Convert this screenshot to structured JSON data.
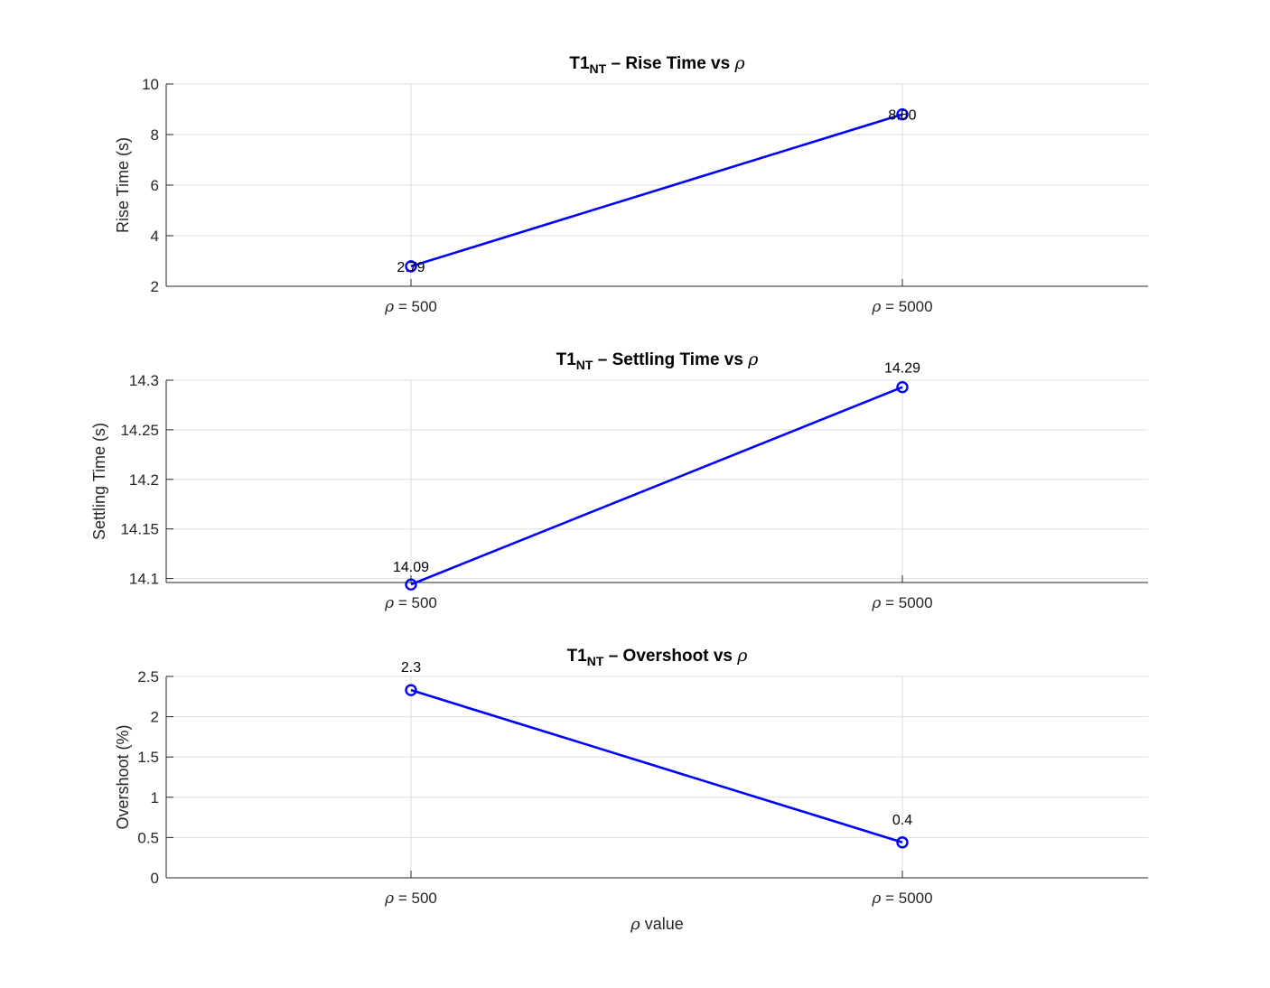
{
  "chart_data": [
    {
      "type": "line",
      "title": {
        "main": "T1",
        "sub": "NT",
        "rest": " – Rise Time vs ",
        "symbol": "ρ"
      },
      "categories": [
        "ρ = 500",
        "ρ = 5000"
      ],
      "values": [
        2.79,
        8.8
      ],
      "data_labels": [
        "2.79",
        "8.80"
      ],
      "ylabel": "Rise Time (s)",
      "xlabel": "",
      "ylim": [
        2,
        10
      ],
      "yticks": [
        "2",
        "4",
        "6",
        "8",
        "10"
      ],
      "ytick_values": [
        2,
        4,
        6,
        8,
        10
      ],
      "grid": true,
      "color": "#0000ff"
    },
    {
      "type": "line",
      "title": {
        "main": "T1",
        "sub": "NT",
        "rest": " – Settling Time vs ",
        "symbol": "ρ"
      },
      "categories": [
        "ρ = 500",
        "ρ = 5000"
      ],
      "values": [
        14.094,
        14.293
      ],
      "data_labels": [
        "14.09",
        "14.29"
      ],
      "ylabel": "Settling Time (s)",
      "xlabel": "",
      "ylim": [
        14.096,
        14.3
      ],
      "yticks": [
        "14.1",
        "14.15",
        "14.2",
        "14.25",
        "14.3"
      ],
      "ytick_values": [
        14.1,
        14.15,
        14.2,
        14.25,
        14.3
      ],
      "grid": true,
      "color": "#0000ff"
    },
    {
      "type": "line",
      "title": {
        "main": "T1",
        "sub": "NT",
        "rest": " – Overshoot vs ",
        "symbol": "ρ"
      },
      "categories": [
        "ρ = 500",
        "ρ = 5000"
      ],
      "values": [
        2.33,
        0.44
      ],
      "data_labels": [
        "2.3",
        "0.4"
      ],
      "ylabel": "Overshoot (%)",
      "xlabel": "ρ value",
      "ylim": [
        0,
        2.5
      ],
      "yticks": [
        "0",
        "0.5",
        "1",
        "1.5",
        "2",
        "2.5"
      ],
      "ytick_values": [
        0,
        0.5,
        1,
        1.5,
        2,
        2.5
      ],
      "grid": true,
      "color": "#0000ff"
    }
  ]
}
